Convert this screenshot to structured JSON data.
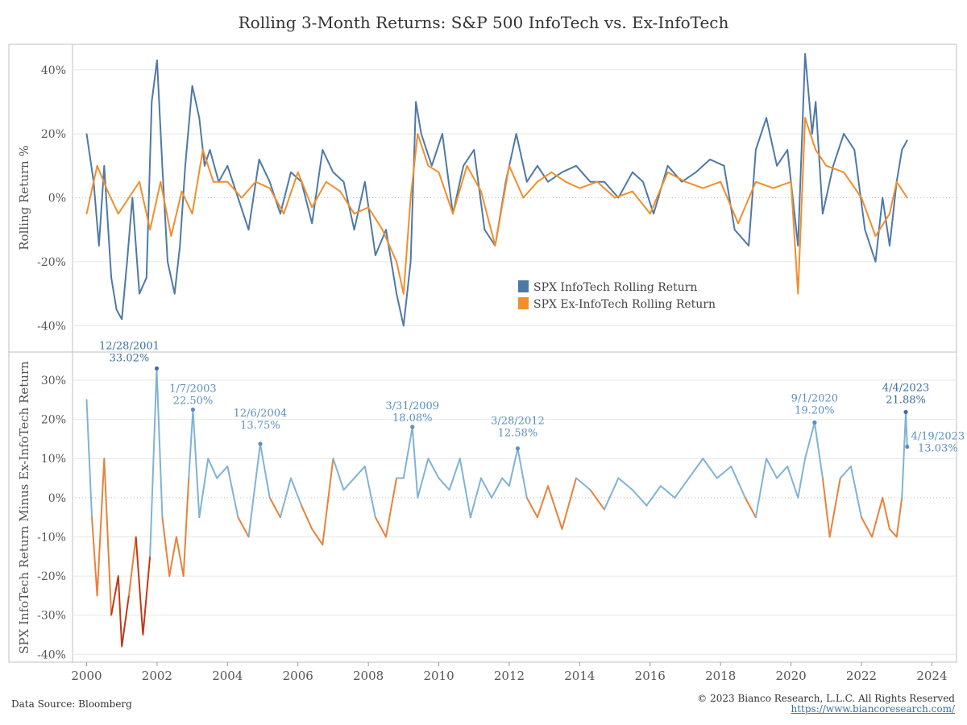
{
  "title": "Rolling 3-Month Returns: S&P 500 InfoTech vs. Ex-InfoTech",
  "footer": {
    "data_source": "Data Source: Bloomberg",
    "copyright": "© 2023 Bianco Research, L.L.C. All Rights Reserved",
    "website": "https://www.biancoresearch.com/"
  },
  "colors": {
    "infotech": "#4e79a7",
    "ex_infotech": "#f28e2b",
    "diff_positive": "#7fb3d5",
    "diff_negative": "#e8823a",
    "diff_deep_negative": "#c0391a",
    "grid": "#e6e6e6",
    "zero_line": "#bbbbbb",
    "annotation": "#5b8fc0",
    "annotation_dark": "#3d6e9e"
  },
  "chart_data": [
    {
      "type": "line",
      "ylabel": "Rolling Return %",
      "ylim": [
        -48,
        48
      ],
      "yticks": [
        40,
        20,
        0,
        -20,
        -40
      ],
      "ytick_labels": [
        "40%",
        "20%",
        "0%",
        "-20%",
        "-40%"
      ],
      "xlim": [
        1999.6,
        2024.7
      ],
      "grid": "horizontal",
      "legend_position": "center-right",
      "series": [
        {
          "name": "SPX InfoTech Rolling Return",
          "key": "infotech",
          "x": [
            2000.0,
            2000.2,
            2000.35,
            2000.5,
            2000.7,
            2000.85,
            2001.0,
            2001.15,
            2001.3,
            2001.5,
            2001.7,
            2001.85,
            2002.0,
            2002.15,
            2002.3,
            2002.5,
            2002.65,
            2002.8,
            2003.0,
            2003.2,
            2003.35,
            2003.5,
            2003.75,
            2004.0,
            2004.3,
            2004.6,
            2004.9,
            2005.2,
            2005.5,
            2005.8,
            2006.1,
            2006.4,
            2006.7,
            2007.0,
            2007.3,
            2007.6,
            2007.9,
            2008.2,
            2008.5,
            2008.8,
            2009.0,
            2009.2,
            2009.35,
            2009.5,
            2009.8,
            2010.1,
            2010.4,
            2010.7,
            2011.0,
            2011.3,
            2011.6,
            2011.9,
            2012.2,
            2012.5,
            2012.8,
            2013.1,
            2013.5,
            2013.9,
            2014.3,
            2014.7,
            2015.1,
            2015.5,
            2015.8,
            2016.1,
            2016.5,
            2016.9,
            2017.3,
            2017.7,
            2018.1,
            2018.4,
            2018.8,
            2019.0,
            2019.3,
            2019.6,
            2019.9,
            2020.2,
            2020.4,
            2020.6,
            2020.7,
            2020.9,
            2021.2,
            2021.5,
            2021.8,
            2022.1,
            2022.4,
            2022.6,
            2022.8,
            2023.0,
            2023.15,
            2023.3
          ],
          "y": [
            20,
            5,
            -15,
            10,
            -25,
            -35,
            -38,
            -20,
            0,
            -30,
            -25,
            30,
            43,
            10,
            -20,
            -30,
            -15,
            10,
            35,
            25,
            10,
            15,
            5,
            10,
            0,
            -10,
            12,
            5,
            -5,
            8,
            5,
            -8,
            15,
            8,
            5,
            -10,
            5,
            -18,
            -10,
            -30,
            -40,
            -20,
            30,
            20,
            10,
            20,
            -5,
            10,
            15,
            -10,
            -15,
            5,
            20,
            5,
            10,
            5,
            8,
            10,
            5,
            5,
            0,
            8,
            5,
            -5,
            10,
            5,
            8,
            12,
            10,
            -10,
            -15,
            15,
            25,
            10,
            15,
            -15,
            45,
            20,
            30,
            -5,
            10,
            20,
            15,
            -10,
            -20,
            0,
            -15,
            5,
            15,
            18
          ]
        },
        {
          "name": "SPX Ex-InfoTech Rolling Return",
          "key": "ex_infotech",
          "x": [
            2000.0,
            2000.3,
            2000.6,
            2000.9,
            2001.2,
            2001.5,
            2001.8,
            2002.1,
            2002.4,
            2002.7,
            2003.0,
            2003.3,
            2003.6,
            2004.0,
            2004.4,
            2004.8,
            2005.2,
            2005.6,
            2006.0,
            2006.4,
            2006.8,
            2007.2,
            2007.6,
            2008.0,
            2008.4,
            2008.8,
            2009.0,
            2009.2,
            2009.4,
            2009.7,
            2010.0,
            2010.4,
            2010.8,
            2011.2,
            2011.6,
            2012.0,
            2012.4,
            2012.8,
            2013.2,
            2013.6,
            2014.0,
            2014.5,
            2015.0,
            2015.5,
            2016.0,
            2016.5,
            2017.0,
            2017.5,
            2018.0,
            2018.5,
            2019.0,
            2019.5,
            2020.0,
            2020.2,
            2020.4,
            2020.7,
            2021.0,
            2021.5,
            2022.0,
            2022.4,
            2022.8,
            2023.0,
            2023.3
          ],
          "y": [
            -5,
            10,
            2,
            -5,
            0,
            5,
            -10,
            5,
            -12,
            2,
            -5,
            15,
            5,
            5,
            0,
            5,
            3,
            -5,
            8,
            -3,
            5,
            2,
            -5,
            -3,
            -10,
            -20,
            -30,
            0,
            20,
            10,
            8,
            -5,
            10,
            2,
            -15,
            10,
            0,
            5,
            8,
            5,
            3,
            5,
            0,
            2,
            -5,
            8,
            5,
            3,
            5,
            -8,
            5,
            3,
            5,
            -30,
            25,
            15,
            10,
            8,
            0,
            -12,
            -5,
            5,
            0
          ]
        }
      ]
    },
    {
      "type": "line",
      "ylabel": "SPX InfoTech Return Minus Ex-InfoTech Return",
      "ylim": [
        -42,
        37
      ],
      "yticks": [
        30,
        20,
        10,
        0,
        -10,
        -20,
        -30,
        -40
      ],
      "ytick_labels": [
        "30%",
        "20%",
        "10%",
        "0%",
        "-10%",
        "-20%",
        "-30%",
        "-40%"
      ],
      "xlim": [
        1999.6,
        2024.7
      ],
      "xticks": [
        2000,
        2002,
        2004,
        2006,
        2008,
        2010,
        2012,
        2014,
        2016,
        2018,
        2020,
        2022,
        2024
      ],
      "xtick_labels": [
        "2000",
        "2002",
        "2004",
        "2006",
        "2008",
        "2010",
        "2012",
        "2014",
        "2016",
        "2018",
        "2020",
        "2022",
        "2024"
      ],
      "grid": "horizontal",
      "series": [
        {
          "key": "difference",
          "x": [
            2000.0,
            2000.15,
            2000.3,
            2000.5,
            2000.7,
            2000.9,
            2001.0,
            2001.2,
            2001.4,
            2001.6,
            2001.8,
            2001.99,
            2002.15,
            2002.35,
            2002.55,
            2002.75,
            2002.9,
            2003.02,
            2003.2,
            2003.45,
            2003.7,
            2004.0,
            2004.3,
            2004.6,
            2004.93,
            2005.2,
            2005.5,
            2005.8,
            2006.1,
            2006.4,
            2006.7,
            2007.0,
            2007.3,
            2007.6,
            2007.9,
            2008.2,
            2008.5,
            2008.8,
            2009.0,
            2009.25,
            2009.4,
            2009.7,
            2010.0,
            2010.3,
            2010.6,
            2010.9,
            2011.2,
            2011.5,
            2011.8,
            2012.0,
            2012.24,
            2012.5,
            2012.8,
            2013.1,
            2013.5,
            2013.9,
            2014.3,
            2014.7,
            2015.1,
            2015.5,
            2015.9,
            2016.3,
            2016.7,
            2017.1,
            2017.5,
            2017.9,
            2018.3,
            2018.7,
            2019.0,
            2019.3,
            2019.6,
            2019.9,
            2020.2,
            2020.4,
            2020.67,
            2020.9,
            2021.1,
            2021.4,
            2021.7,
            2022.0,
            2022.3,
            2022.6,
            2022.8,
            2023.0,
            2023.15,
            2023.26,
            2023.3
          ],
          "y": [
            25,
            -5,
            -25,
            10,
            -30,
            -20,
            -38,
            -25,
            -10,
            -35,
            -15,
            33,
            -5,
            -20,
            -10,
            -20,
            5,
            22.5,
            -5,
            10,
            5,
            8,
            -5,
            -10,
            13.75,
            0,
            -5,
            5,
            -2,
            -8,
            -12,
            10,
            2,
            5,
            8,
            -5,
            -10,
            5,
            5,
            18,
            0,
            10,
            5,
            2,
            10,
            -5,
            5,
            0,
            5,
            3,
            12.6,
            0,
            -5,
            3,
            -8,
            5,
            2,
            -3,
            5,
            2,
            -2,
            3,
            0,
            5,
            10,
            5,
            8,
            0,
            -5,
            10,
            5,
            8,
            0,
            10,
            19.2,
            5,
            -10,
            5,
            8,
            -5,
            -10,
            0,
            -8,
            -10,
            0,
            21.9,
            13
          ]
        }
      ],
      "annotations": [
        {
          "date": "12/28/2001",
          "value": "33.02%",
          "x": 2001.99,
          "y": 33.02
        },
        {
          "date": "1/7/2003",
          "value": "22.50%",
          "x": 2003.02,
          "y": 22.5
        },
        {
          "date": "12/6/2004",
          "value": "13.75%",
          "x": 2004.93,
          "y": 13.75
        },
        {
          "date": "3/31/2009",
          "value": "18.08%",
          "x": 2009.25,
          "y": 18.08
        },
        {
          "date": "3/28/2012",
          "value": "12.58%",
          "x": 2012.24,
          "y": 12.58
        },
        {
          "date": "9/1/2020",
          "value": "19.20%",
          "x": 2020.67,
          "y": 19.2
        },
        {
          "date": "4/4/2023",
          "value": "21.88%",
          "x": 2023.26,
          "y": 21.88
        },
        {
          "date": "4/19/2023",
          "value": "13.03%",
          "x": 2023.3,
          "y": 13.03
        }
      ]
    }
  ]
}
